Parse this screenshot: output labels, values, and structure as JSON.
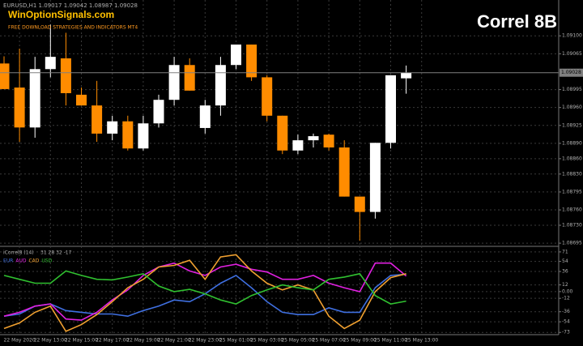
{
  "chart_data": [
    {
      "type": "candlestick",
      "header": "EURUSD,H1  1.09017 1.09042 1.08987 1.09028",
      "watermark": "WinOptionSignals.com",
      "subtitle": "FREE DOWNLOAD STRATEGIES AND INDICATORS MT4",
      "badge": "Correl 8B",
      "categories": [
        null,
        "22 May 2020",
        null,
        "22 May 13:00",
        null,
        "22 May 15:00",
        null,
        "22 May 17:00",
        null,
        "22 May 19:00",
        null,
        "22 May 21:00",
        null,
        "22 May 23:00",
        null,
        "25 May 01:00",
        null,
        "25 May 03:00",
        null,
        "25 May 05:00",
        null,
        "25 May 07:00",
        null,
        "25 May 09:00",
        null,
        "25 May 11:00",
        null,
        "25 May 13:00"
      ],
      "open": [
        1.09046,
        1.08999,
        1.08921,
        1.09035,
        1.09056,
        1.08985,
        1.08964,
        1.08909,
        1.08933,
        1.0888,
        1.08929,
        1.08975,
        1.09043,
        1.0892,
        1.08964,
        1.09043,
        1.09083,
        1.09019,
        1.08944,
        1.08876,
        1.08896,
        1.08907,
        1.08882,
        1.08786,
        1.08756,
        1.08891,
        1.09017,
        null
      ],
      "high": [
        1.0906,
        1.09075,
        1.09059,
        1.09122,
        1.09106,
        1.08999,
        1.09012,
        1.08944,
        1.08944,
        1.08944,
        1.08985,
        1.09059,
        1.09056,
        1.08975,
        1.09059,
        1.09083,
        1.09083,
        1.09023,
        1.08944,
        1.08907,
        1.08909,
        1.08909,
        1.08896,
        1.08786,
        1.08891,
        1.09023,
        1.09042,
        null
      ],
      "low": [
        1.08996,
        1.08893,
        1.08901,
        1.09019,
        1.08964,
        1.08964,
        1.08893,
        1.08896,
        1.08876,
        1.08876,
        1.08921,
        1.08964,
        1.08993,
        1.08909,
        1.08944,
        1.09035,
        1.09012,
        1.08933,
        1.08869,
        1.08869,
        1.08882,
        1.08876,
        1.08786,
        1.087,
        1.08743,
        1.0888,
        1.08987,
        null
      ],
      "close": [
        1.08996,
        1.08921,
        1.09035,
        1.09059,
        1.08988,
        1.08964,
        1.08909,
        1.08933,
        1.0888,
        1.08929,
        1.08975,
        1.09043,
        1.08993,
        1.08964,
        1.09043,
        1.09083,
        1.09019,
        1.08944,
        1.08876,
        1.08896,
        1.08904,
        1.08882,
        1.08786,
        1.08756,
        1.08891,
        1.09023,
        1.09028,
        null
      ],
      "up_color": "#ffffff",
      "down_color": "#ff8c00",
      "last_price": {
        "value": 1.09028,
        "label": "1.09028"
      },
      "ylim": [
        1.08692,
        1.0917
      ],
      "yticks": [
        {
          "value": 1.091,
          "label": "1.09100"
        },
        {
          "value": 1.09065,
          "label": "1.09065"
        },
        {
          "value": 1.08995,
          "label": "1.08995"
        },
        {
          "value": 1.0896,
          "label": "1.08960"
        },
        {
          "value": 1.08925,
          "label": "1.08925"
        },
        {
          "value": 1.0889,
          "label": "1.08890"
        },
        {
          "value": 1.0886,
          "label": "1.08860"
        },
        {
          "value": 1.0883,
          "label": "1.08830"
        },
        {
          "value": 1.08795,
          "label": "1.08795"
        },
        {
          "value": 1.0876,
          "label": "1.08760"
        },
        {
          "value": 1.0873,
          "label": "1.08730"
        },
        {
          "value": 1.08695,
          "label": "1.08695"
        }
      ],
      "grid": true
    },
    {
      "type": "line",
      "title": "iCorrel8 (14)",
      "current": "31 28 32 -17",
      "series": [
        {
          "name": "EUR",
          "color": "#3f6fe0",
          "values": [
            -44,
            -40,
            -26,
            -22,
            -34,
            -37,
            -40,
            -40,
            -44,
            -34,
            -26,
            -15,
            -18,
            -4,
            15,
            29,
            7,
            -18,
            -37,
            -41,
            -41,
            -29,
            -37,
            -37,
            7,
            29,
            31,
            null
          ]
        },
        {
          "name": "AUD",
          "color": "#e020e0",
          "values": [
            -44,
            -37,
            -26,
            -22,
            -49,
            -51,
            -37,
            -15,
            3,
            29,
            44,
            51,
            37,
            29,
            44,
            49,
            40,
            35,
            22,
            22,
            29,
            15,
            7,
            0,
            51,
            51,
            28,
            null
          ]
        },
        {
          "name": "CAD",
          "color": "#f0a030",
          "values": [
            -66,
            -56,
            -37,
            -26,
            -71,
            -59,
            -41,
            -18,
            7,
            22,
            44,
            47,
            56,
            22,
            62,
            66,
            37,
            15,
            3,
            12,
            3,
            -44,
            -66,
            -51,
            0,
            25,
            32,
            null
          ]
        },
        {
          "name": "USD",
          "color": "#30c030",
          "values": [
            29,
            22,
            15,
            15,
            37,
            29,
            22,
            21,
            26,
            32,
            10,
            0,
            4,
            -4,
            -15,
            -22,
            -7,
            3,
            12,
            7,
            3,
            22,
            26,
            32,
            -7,
            -22,
            -17,
            null
          ]
        }
      ],
      "ylim": [
        -77,
        81
      ],
      "yticks": [
        71,
        54,
        36,
        12,
        {
          "value": 0,
          "label": "0.00"
        },
        -12,
        -36,
        -54,
        -73
      ],
      "grid": true
    }
  ]
}
